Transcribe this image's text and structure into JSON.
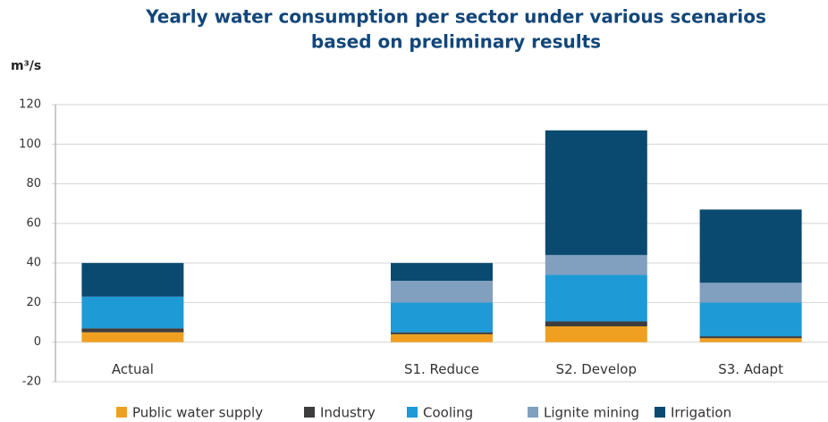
{
  "chart_data": {
    "type": "stacked_bar",
    "title": [
      "Yearly water consumption per sector under various scenarios",
      "based on preliminary results"
    ],
    "y_label": "m³/s",
    "categories": [
      "Actual",
      null,
      "S1. Reduce",
      "S2. Develop",
      "S3. Adapt"
    ],
    "series": [
      {
        "name": "Public water supply",
        "color": "#f0a021",
        "values": [
          5,
          null,
          4,
          8,
          2
        ]
      },
      {
        "name": "Industry",
        "color": "#3d3d3d",
        "values": [
          2,
          null,
          1,
          2.5,
          1
        ]
      },
      {
        "name": "Cooling",
        "color": "#1e9ad6",
        "values": [
          16,
          null,
          15,
          23.5,
          17
        ]
      },
      {
        "name": "Lignite mining",
        "color": "#819fbf",
        "values": [
          0,
          null,
          11,
          10,
          10
        ]
      },
      {
        "name": "Irrigation",
        "color": "#0b4a70",
        "values": [
          17,
          null,
          9,
          63,
          37
        ]
      }
    ],
    "ylim": [
      -20,
      120
    ],
    "yticks": [
      -20,
      0,
      20,
      40,
      60,
      80,
      100,
      120
    ],
    "grid": true
  }
}
